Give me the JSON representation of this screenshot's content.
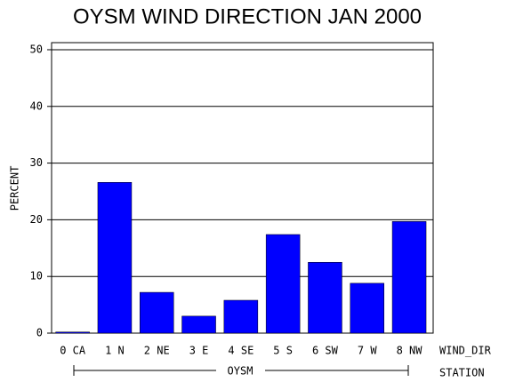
{
  "chart_data": {
    "type": "bar",
    "title": "OYSM WIND DIRECTION JAN 2000",
    "y_label": "PERCENT",
    "x_label": "WIND_DIR",
    "group_label": "STATION",
    "group": "OYSM",
    "categories": [
      "0 CA",
      "1 N",
      "2 NE",
      "3 E",
      "4 SE",
      "5 S",
      "6 SW",
      "7 W",
      "8 NW"
    ],
    "values": [
      0.2,
      26.6,
      7.2,
      3.0,
      5.8,
      17.4,
      12.5,
      8.8,
      19.7
    ],
    "color": "#0000ff",
    "ylim": [
      0,
      51.25
    ],
    "yticks": [
      0,
      10,
      20,
      30,
      40,
      50
    ],
    "grid": true
  }
}
